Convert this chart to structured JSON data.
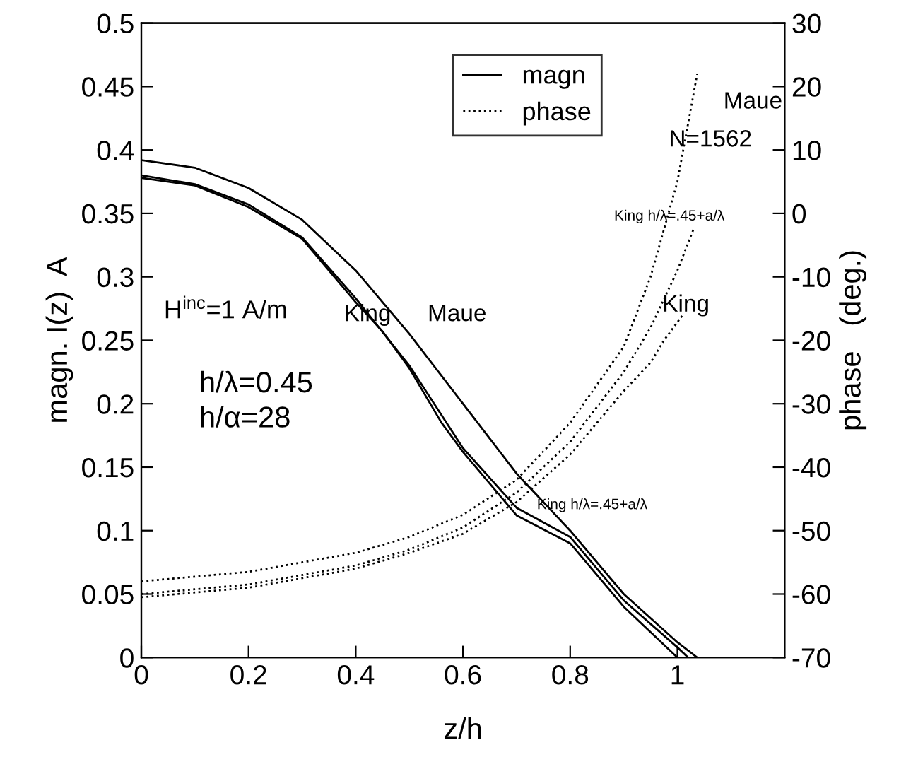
{
  "chart_data": {
    "type": "line",
    "xlabel": "z/h",
    "ylabel": "magn. I(z)  A",
    "y2label": "phase   (deg.)",
    "xlim": [
      0,
      1.2
    ],
    "xticks": [
      0,
      0.2,
      0.4,
      0.6,
      0.8,
      1
    ],
    "ylim": [
      0,
      0.5
    ],
    "yticks": [
      0,
      0.05,
      0.1,
      0.15,
      0.2,
      0.25,
      0.3,
      0.35,
      0.4,
      0.45,
      0.5
    ],
    "y2lim": [
      -70,
      30
    ],
    "y2ticks": [
      -70,
      -60,
      -50,
      -40,
      -30,
      -20,
      -10,
      0,
      10,
      20,
      30
    ],
    "grid": false,
    "legend": "top",
    "marker": "none",
    "series": [
      {
        "name": "magn",
        "color": "#000000",
        "line_style": "solid",
        "axis": "y",
        "x": [
          0,
          0.1,
          0.2,
          0.3,
          0.4,
          0.45,
          0.5,
          0.56,
          0.6,
          0.7,
          0.8,
          0.9,
          1.0
        ],
        "values": [
          0.378,
          0.372,
          0.355,
          0.33,
          0.28,
          0.257,
          0.228,
          0.185,
          0.162,
          0.112,
          0.09,
          0.04,
          0
        ]
      },
      {
        "color": "#000000",
        "line_style": "solid",
        "axis": "y",
        "x": [
          0,
          0.1,
          0.2,
          0.3,
          0.4,
          0.5,
          0.6,
          0.7,
          0.8,
          0.9,
          1.0,
          1.02
        ],
        "values": [
          0.38,
          0.373,
          0.357,
          0.331,
          0.283,
          0.23,
          0.165,
          0.118,
          0.095,
          0.045,
          0.008,
          0
        ]
      },
      {
        "color": "#000000",
        "line_style": "solid",
        "axis": "y",
        "x": [
          0,
          0.1,
          0.2,
          0.3,
          0.4,
          0.5,
          0.6,
          0.7,
          0.8,
          0.9,
          1.0,
          1.037
        ],
        "values": [
          0.392,
          0.386,
          0.37,
          0.345,
          0.305,
          0.255,
          0.2,
          0.145,
          0.1,
          0.05,
          0.012,
          0
        ]
      },
      {
        "name": "phase",
        "color": "#000000",
        "line_style": "dotted",
        "axis": "y2",
        "x": [
          0,
          0.2,
          0.4,
          0.5,
          0.6,
          0.7,
          0.8,
          0.9,
          0.95,
          1.0,
          1.037
        ],
        "values": [
          -58,
          -56.5,
          -53.5,
          -51,
          -47.5,
          -42,
          -33,
          -21,
          -10,
          5,
          22
        ]
      },
      {
        "color": "#000000",
        "line_style": "dotted",
        "axis": "y2",
        "x": [
          0,
          0.2,
          0.4,
          0.5,
          0.6,
          0.7,
          0.8,
          0.9,
          0.95,
          1.0,
          1.03
        ],
        "values": [
          -60,
          -58.5,
          -55.5,
          -53,
          -49.5,
          -44,
          -36,
          -25,
          -18,
          -9,
          -2.5
        ]
      },
      {
        "color": "#000000",
        "line_style": "dotted",
        "axis": "y2",
        "x": [
          0,
          0.2,
          0.4,
          0.5,
          0.6,
          0.7,
          0.8,
          0.9,
          0.95,
          0.975,
          1.01
        ],
        "values": [
          -60.5,
          -59,
          -56,
          -53.5,
          -50.5,
          -45.5,
          -38,
          -28,
          -23.5,
          -20,
          -16
        ]
      }
    ],
    "annotations": [
      "King",
      "Maue",
      "King h/λ=.45+a/λ",
      "Maue",
      "N=1562",
      "King h/λ=.45+a/λ",
      "King",
      "H$^{inc}$=1 A/m",
      "h/λ=0.45",
      "h/α=28"
    ]
  }
}
